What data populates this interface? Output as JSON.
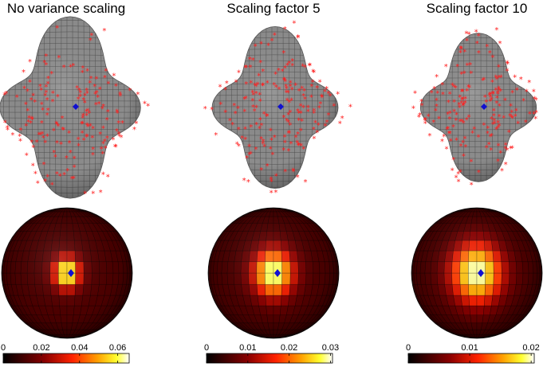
{
  "figure": {
    "panels": [
      {
        "title": "No variance scaling",
        "heatmap_spread": 0.55,
        "colorbar": {
          "ticks": [
            {
              "value": 0,
              "label": "0"
            },
            {
              "value": 0.02,
              "label": "0.02"
            },
            {
              "value": 0.04,
              "label": "0.04"
            },
            {
              "value": 0.06,
              "label": "0.06"
            }
          ],
          "max": 0.066
        }
      },
      {
        "title": "Scaling factor 5",
        "heatmap_spread": 0.85,
        "colorbar": {
          "ticks": [
            {
              "value": 0,
              "label": "0"
            },
            {
              "value": 0.01,
              "label": "0.01"
            },
            {
              "value": 0.02,
              "label": "0.02"
            },
            {
              "value": 0.03,
              "label": "0.03"
            }
          ],
          "max": 0.0305
        }
      },
      {
        "title": "Scaling factor 10",
        "heatmap_spread": 1.1,
        "colorbar": {
          "ticks": [
            {
              "value": 0,
              "label": "0"
            },
            {
              "value": 0.01,
              "label": "0.01"
            },
            {
              "value": 0.02,
              "label": "0.02"
            }
          ],
          "max": 0.0205
        }
      }
    ],
    "colors": {
      "surface_fill": "#8c8c8c",
      "surface_grid": "#3a3a3a",
      "sample_marker": "#ff2020",
      "mean_marker": "#1010d0",
      "colormap": [
        "#000000",
        "#7a0000",
        "#e01000",
        "#ff8c00",
        "#ffff40",
        "#ffffff"
      ]
    }
  }
}
